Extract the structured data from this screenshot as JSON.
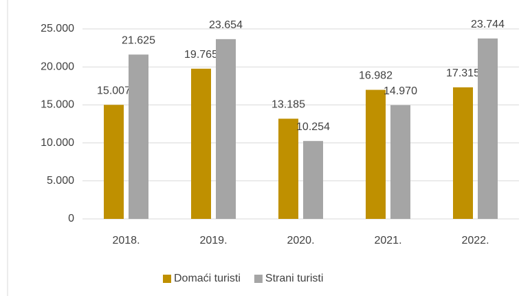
{
  "chart_data": {
    "type": "bar",
    "categories": [
      "2018.",
      "2019.",
      "2020.",
      "2021.",
      "2022."
    ],
    "series": [
      {
        "name": "Domaći turisti",
        "color": "#bf9000",
        "values": [
          15007,
          19765,
          13185,
          16982,
          17315
        ],
        "value_labels": [
          "15.007",
          "19.765",
          "13.185",
          "16.982",
          "17.315"
        ]
      },
      {
        "name": "Strani turisti",
        "color": "#a5a5a5",
        "values": [
          21625,
          23654,
          10254,
          14970,
          23744
        ],
        "value_labels": [
          "21.625",
          "23.654",
          "10.254",
          "14.970",
          "23.744"
        ]
      }
    ],
    "ylim": [
      0,
      25000
    ],
    "yticks": [
      0,
      {
        "value": 5000,
        "label": "5.000"
      },
      {
        "value": 10000,
        "label": "10.000"
      },
      {
        "value": 15000,
        "label": "15.000"
      },
      {
        "value": 20000,
        "label": "20.000"
      },
      {
        "value": 25000,
        "label": "25.000"
      }
    ],
    "grid": true,
    "legend": "bottom"
  }
}
